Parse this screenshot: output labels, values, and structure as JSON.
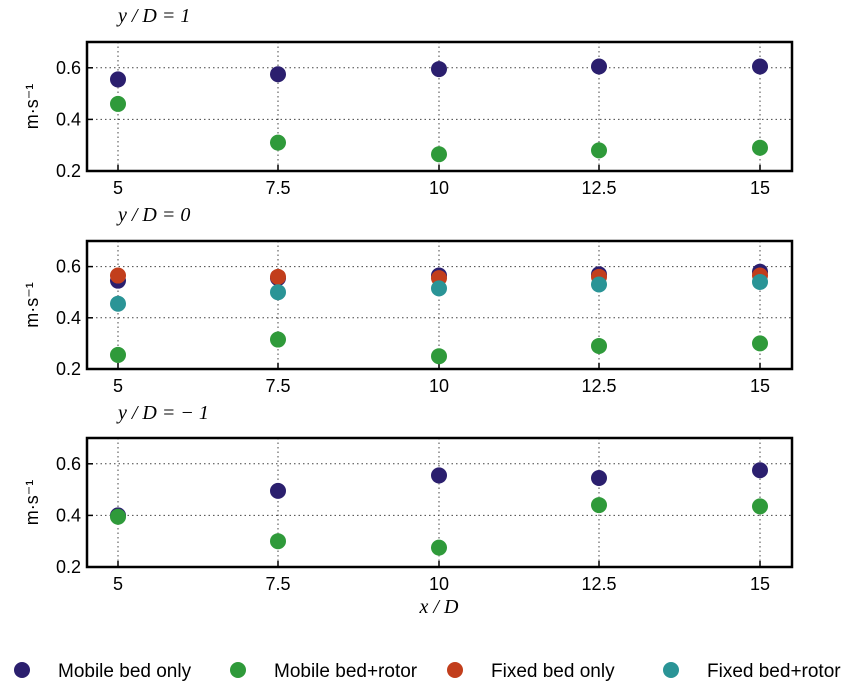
{
  "chart_data": {
    "type": "scatter",
    "x": [
      5,
      7.5,
      10,
      12.5,
      15
    ],
    "x_tick_labels": [
      "5",
      "7.5",
      "10",
      "12.5",
      "15"
    ],
    "xlabel": "x / D",
    "ylabel": "m·s⁻¹",
    "ylim": [
      0.2,
      0.7
    ],
    "y_ticks": [
      0.2,
      0.4,
      0.6
    ],
    "y_tick_labels": [
      "0.2",
      "0.4",
      "0.6"
    ],
    "grid": true,
    "legend_position": "bottom",
    "legend": [
      {
        "name": "Mobile bed only",
        "color": "#2b1f6e"
      },
      {
        "name": "Mobile bed+rotor",
        "color": "#2f9a3a"
      },
      {
        "name": "Fixed bed only",
        "color": "#c23e1c"
      },
      {
        "name": "Fixed bed+rotor",
        "color": "#2a9496"
      }
    ],
    "panels": [
      {
        "title": "y / D = 1",
        "series": [
          {
            "name": "Mobile bed only",
            "values": [
              0.555,
              0.575,
              0.595,
              0.605,
              0.605
            ]
          },
          {
            "name": "Mobile bed+rotor",
            "values": [
              0.46,
              0.31,
              0.265,
              0.28,
              0.29
            ]
          }
        ]
      },
      {
        "title": "y / D = 0",
        "series": [
          {
            "name": "Mobile bed only",
            "values": [
              0.545,
              0.555,
              0.565,
              0.57,
              0.58
            ]
          },
          {
            "name": "Fixed bed only",
            "values": [
              0.565,
              0.56,
              0.555,
              0.56,
              0.565
            ]
          },
          {
            "name": "Fixed bed+rotor",
            "values": [
              0.455,
              0.5,
              0.515,
              0.53,
              0.54
            ]
          },
          {
            "name": "Mobile bed+rotor",
            "values": [
              0.255,
              0.315,
              0.25,
              0.29,
              0.3
            ]
          }
        ]
      },
      {
        "title": "y / D = − 1",
        "series": [
          {
            "name": "Mobile bed only",
            "values": [
              0.4,
              0.495,
              0.555,
              0.545,
              0.575
            ]
          },
          {
            "name": "Mobile bed+rotor",
            "values": [
              0.395,
              0.3,
              0.275,
              0.44,
              0.435
            ]
          }
        ]
      }
    ]
  }
}
